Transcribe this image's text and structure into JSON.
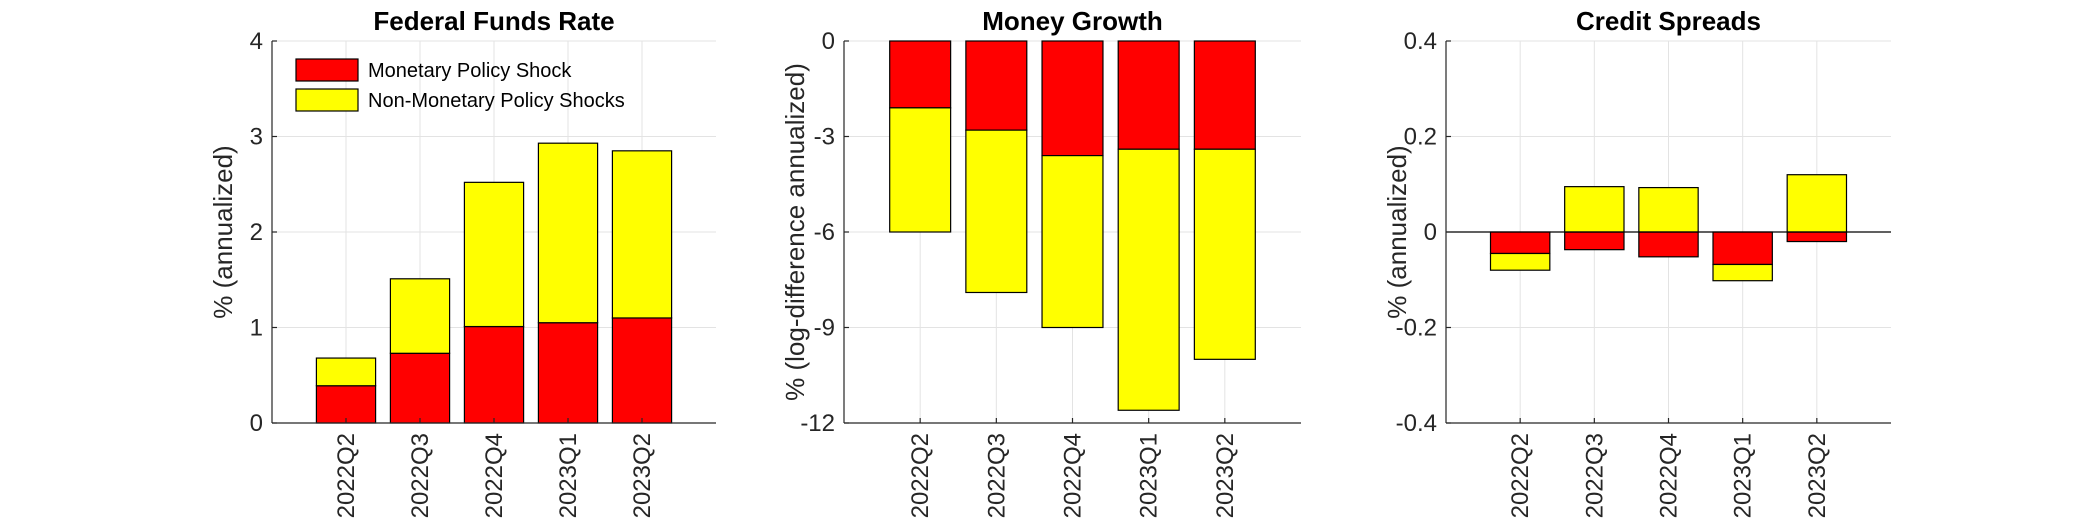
{
  "colors": {
    "monetary": "#ff0000",
    "non_monetary": "#ffff00",
    "edge": "#000000",
    "grid": "#e3e3e3"
  },
  "legend": {
    "placement": "top-left",
    "panel": 0,
    "entries": [
      "Monetary Policy Shock",
      "Non-Monetary Policy Shocks"
    ]
  },
  "chart_data": [
    {
      "type": "bar",
      "stacked": true,
      "title": "Federal Funds Rate",
      "ylabel": "% (annualized)",
      "categories": [
        "2022Q2",
        "2022Q3",
        "2022Q4",
        "2023Q1",
        "2023Q2"
      ],
      "ylim": [
        0,
        4
      ],
      "yticks": [
        0,
        1,
        2,
        3,
        4
      ],
      "ytick_labels": [
        "0",
        "1",
        "2",
        "3",
        "4"
      ],
      "grid": true,
      "series": [
        {
          "name": "Monetary Policy Shock",
          "values": [
            0.39,
            0.73,
            1.01,
            1.05,
            1.1
          ]
        },
        {
          "name": "Non-Monetary Policy Shocks",
          "values": [
            0.29,
            0.78,
            1.51,
            1.88,
            1.75
          ]
        }
      ]
    },
    {
      "type": "bar",
      "stacked": true,
      "title": "Money Growth",
      "ylabel": "% (log-difference annualized)",
      "categories": [
        "2022Q2",
        "2022Q3",
        "2022Q4",
        "2023Q1",
        "2023Q2"
      ],
      "ylim": [
        -12,
        0
      ],
      "yticks": [
        -12,
        -9,
        -6,
        -3,
        0
      ],
      "ytick_labels": [
        "-12",
        "-9",
        "-6",
        "-3",
        "0"
      ],
      "grid": true,
      "series": [
        {
          "name": "Monetary Policy Shock",
          "values": [
            -2.1,
            -2.8,
            -3.6,
            -3.4,
            -3.4
          ]
        },
        {
          "name": "Non-Monetary Policy Shocks",
          "values": [
            -3.9,
            -5.1,
            -5.4,
            -8.2,
            -6.6
          ]
        }
      ]
    },
    {
      "type": "bar",
      "stacked": true,
      "title": "Credit Spreads",
      "ylabel": "% (annualized)",
      "categories": [
        "2022Q2",
        "2022Q3",
        "2022Q4",
        "2023Q1",
        "2023Q2"
      ],
      "ylim": [
        -0.4,
        0.4
      ],
      "yticks": [
        -0.4,
        -0.2,
        0,
        0.2,
        0.4
      ],
      "ytick_labels": [
        "-0.4",
        "-0.2",
        "0",
        "0.2",
        "0.4"
      ],
      "grid": true,
      "zero_line": true,
      "series": [
        {
          "name": "Monetary Policy Shock",
          "values": [
            -0.045,
            -0.037,
            -0.052,
            -0.068,
            -0.02
          ]
        },
        {
          "name": "Non-Monetary Policy Shocks",
          "values": [
            -0.035,
            0.095,
            0.093,
            -0.034,
            0.12
          ]
        }
      ]
    }
  ]
}
